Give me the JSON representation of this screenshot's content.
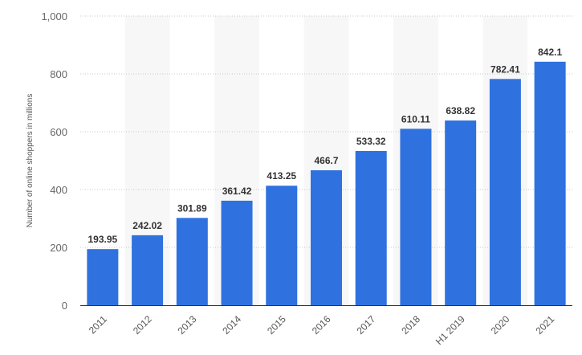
{
  "chart_data": {
    "type": "bar",
    "categories": [
      "2011",
      "2012",
      "2013",
      "2014",
      "2015",
      "2016",
      "2017",
      "2018",
      "H1 2019",
      "2020",
      "2021"
    ],
    "values": [
      193.95,
      242.02,
      301.89,
      361.42,
      413.25,
      466.7,
      533.32,
      610.11,
      638.82,
      782.41,
      842.1
    ],
    "data_labels": [
      "193.95",
      "242.02",
      "301.89",
      "361.42",
      "413.25",
      "466.7",
      "533.32",
      "610.11",
      "638.82",
      "782.41",
      "842.1"
    ],
    "ylabel": "Number of online shoppers in millions",
    "xlabel": "",
    "ylim": [
      0,
      1000
    ],
    "yticks": [
      0,
      200,
      400,
      600,
      800,
      1000
    ],
    "ytick_labels": [
      "0",
      "200",
      "400",
      "600",
      "800",
      "1,000"
    ],
    "grid": true,
    "colors": {
      "bar": "#2f72df",
      "alt_band": "#f7f7f7",
      "grid": "#c8c8c8",
      "axis": "#333333"
    }
  }
}
